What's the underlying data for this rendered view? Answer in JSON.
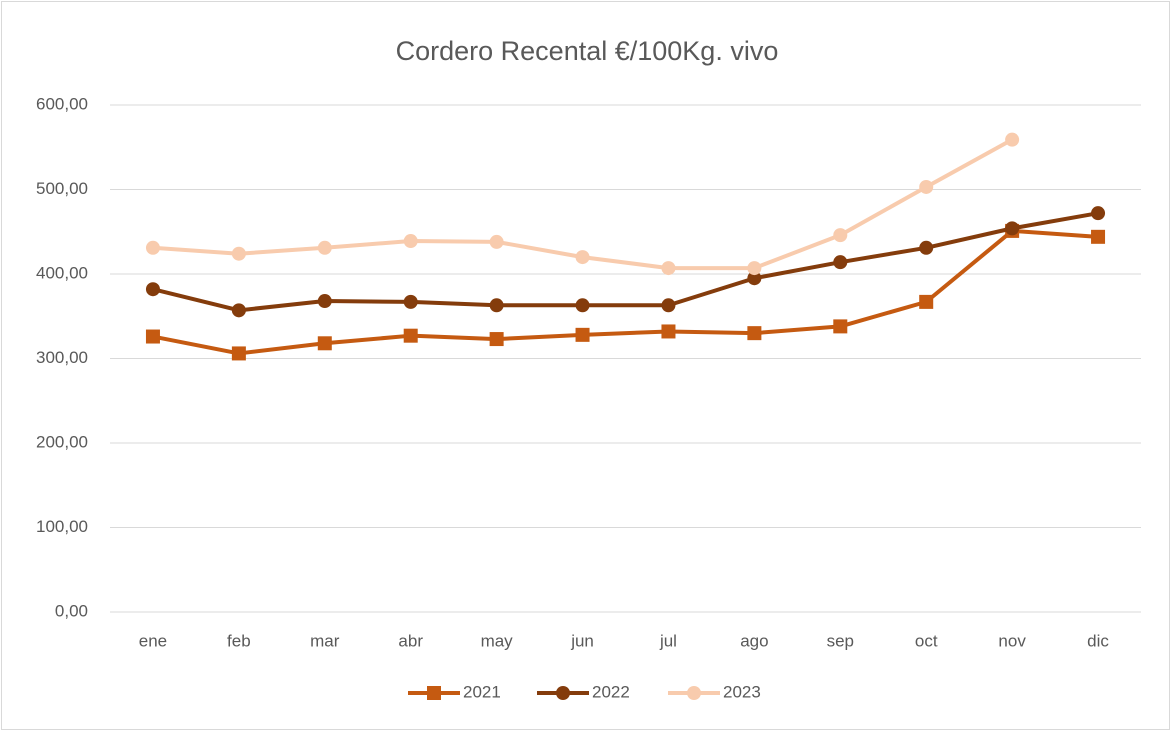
{
  "chart_data": {
    "type": "line",
    "title": "Cordero Recental €/100Kg. vivo",
    "categories": [
      "ene",
      "feb",
      "mar",
      "abr",
      "may",
      "jun",
      "jul",
      "ago",
      "sep",
      "oct",
      "nov",
      "dic"
    ],
    "series": [
      {
        "name": "2021",
        "color": "#c55a11",
        "marker": "square",
        "values": [
          326,
          306,
          318,
          327,
          323,
          328,
          332,
          330,
          338,
          367,
          451,
          444
        ]
      },
      {
        "name": "2022",
        "color": "#843c0c",
        "marker": "circle",
        "values": [
          382,
          357,
          368,
          367,
          363,
          363,
          363,
          395,
          414,
          431,
          454,
          472
        ]
      },
      {
        "name": "2023",
        "color": "#f8cbad",
        "marker": "circle",
        "values": [
          431,
          424,
          431,
          439,
          438,
          420,
          407,
          407,
          446,
          503,
          559,
          null
        ]
      }
    ],
    "ylim": [
      0,
      600
    ],
    "yticks": [
      {
        "value": 0,
        "label": "0,00"
      },
      {
        "value": 100,
        "label": "100,00"
      },
      {
        "value": 200,
        "label": "200,00"
      },
      {
        "value": 300,
        "label": "300,00"
      },
      {
        "value": 400,
        "label": "400,00"
      },
      {
        "value": 500,
        "label": "500,00"
      },
      {
        "value": 600,
        "label": "600,00"
      }
    ],
    "grid": true,
    "legend": "bottom"
  }
}
